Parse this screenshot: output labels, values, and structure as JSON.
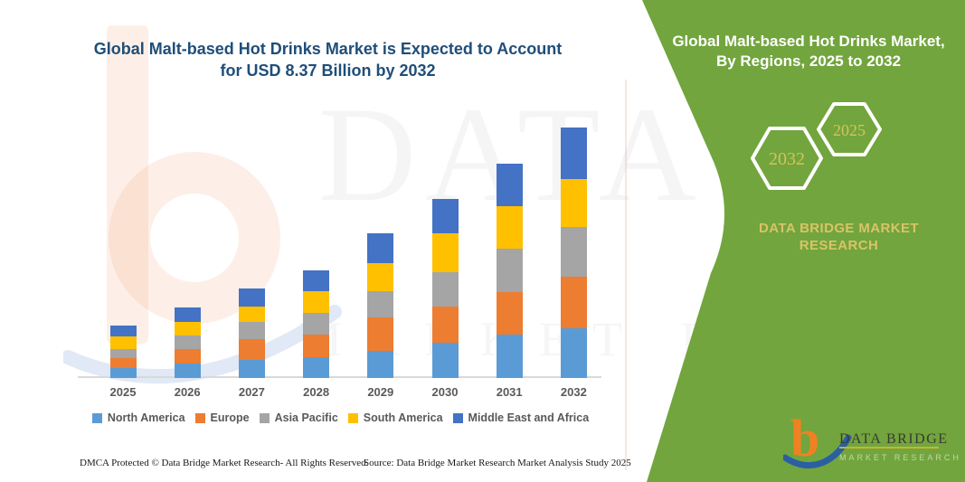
{
  "main": {
    "title": "Global Malt-based Hot Drinks Market is Expected to Account for USD 8.37 Billion by 2032",
    "title_lines": [
      "Global Malt-based Hot Drinks Market is Expected to Account",
      "for USD 8.37 Billion by 2032"
    ],
    "footer_dmca": "DMCA Protected © Data Bridge Market Research-  All Rights Reserved.",
    "footer_source": "Source: Data Bridge Market Research  Market Analysis Study 2025"
  },
  "side_panel": {
    "title_lines": [
      "Global Malt-based Hot Drinks Market,",
      "By Regions, 2025 to 2032"
    ],
    "hexagons": [
      {
        "label": "2032"
      },
      {
        "label": "2025"
      }
    ],
    "brand_text": "DATA BRIDGE MARKET RESEARCH",
    "logo": {
      "mark": "b",
      "name": "DATA BRIDGE",
      "subname": "MARKET RESEARCH"
    },
    "colors": {
      "panel_green": "#72A53D",
      "gold_text": "#D9C468",
      "hex_outline": "#FFFFFF"
    }
  },
  "watermark": {
    "text1": "DATA BRIDGE",
    "text2": "MARKET RESEARCH"
  },
  "chart_data": {
    "type": "bar",
    "stacked": true,
    "title": "Global Malt-based Hot Drinks Market is Expected to Account for USD 8.37 Billion by 2032",
    "unit": "USD Billion",
    "categories": [
      "2025",
      "2026",
      "2027",
      "2028",
      "2029",
      "2030",
      "2031",
      "2032"
    ],
    "series": [
      {
        "name": "North America",
        "color": "#5B9BD5",
        "values": [
          0.33,
          0.48,
          0.61,
          0.71,
          0.91,
          1.19,
          1.45,
          1.67
        ]
      },
      {
        "name": "Europe",
        "color": "#ED7D31",
        "values": [
          0.35,
          0.5,
          0.69,
          0.74,
          1.13,
          1.21,
          1.41,
          1.73
        ]
      },
      {
        "name": "Asia Pacific",
        "color": "#A5A5A5",
        "values": [
          0.3,
          0.45,
          0.58,
          0.74,
          0.85,
          1.15,
          1.45,
          1.66
        ]
      },
      {
        "name": "South America",
        "color": "#FFC000",
        "values": [
          0.42,
          0.45,
          0.52,
          0.71,
          0.94,
          1.29,
          1.43,
          1.58
        ]
      },
      {
        "name": "Middle East and Africa",
        "color": "#4472C4",
        "values": [
          0.36,
          0.48,
          0.58,
          0.71,
          0.99,
          1.13,
          1.42,
          1.73
        ]
      }
    ],
    "totals_estimated": [
      1.76,
      2.36,
      2.98,
      3.61,
      4.82,
      5.97,
      7.16,
      8.37
    ],
    "ylim": [
      0,
      8.7
    ],
    "grid": false,
    "legend_position": "bottom",
    "x_axis_line": true
  }
}
